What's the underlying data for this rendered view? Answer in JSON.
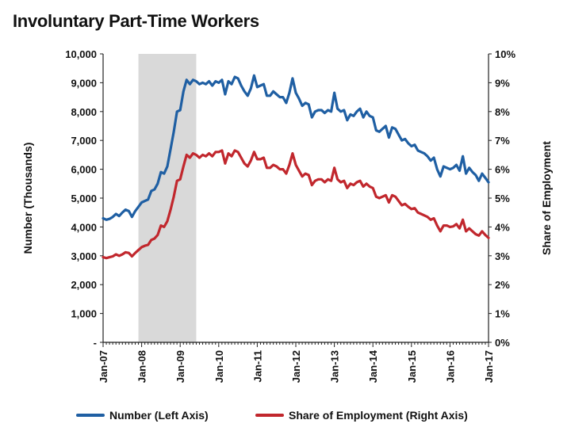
{
  "title": "Involuntary Part-Time Workers",
  "chart_data": {
    "type": "line",
    "title": "Involuntary Part-Time Workers",
    "xlabel": "",
    "ylabel_left": "Number (Thousands)",
    "ylabel_right": "Share of Employment",
    "ylim_left": [
      0,
      10000
    ],
    "ylim_right": [
      0,
      10
    ],
    "x_start": "Jan-07",
    "x_end": "Apr-17",
    "x_tick_labels": [
      "Jan-07",
      "Jan-08",
      "Jan-09",
      "Jan-10",
      "Jan-11",
      "Jan-12",
      "Jan-13",
      "Jan-14",
      "Jan-15",
      "Jan-16",
      "Jan-17"
    ],
    "y_tick_labels_left": [
      "-",
      "1,000",
      "2,000",
      "3,000",
      "4,000",
      "5,000",
      "6,000",
      "7,000",
      "8,000",
      "9,000",
      "10,000"
    ],
    "y_tick_labels_right": [
      "0%",
      "1%",
      "2%",
      "3%",
      "4%",
      "5%",
      "6%",
      "7%",
      "8%",
      "9%",
      "10%"
    ],
    "shaded_region": {
      "from": "Dec-07",
      "to": "Jun-09",
      "color": "#d9d9d9"
    },
    "legend_position": "bottom",
    "series": [
      {
        "name": "Number (Left Axis)",
        "axis": "left",
        "color": "#1f5fa3",
        "values": [
          4300,
          4250,
          4280,
          4350,
          4450,
          4380,
          4500,
          4600,
          4550,
          4350,
          4550,
          4700,
          4850,
          4900,
          4950,
          5250,
          5300,
          5500,
          5900,
          5850,
          6100,
          6700,
          7300,
          8000,
          8050,
          8700,
          9100,
          8950,
          9100,
          9050,
          8950,
          9000,
          8950,
          9050,
          8900,
          9050,
          9000,
          9100,
          8600,
          9050,
          8950,
          9200,
          9150,
          8900,
          8700,
          8550,
          8800,
          9250,
          8850,
          8900,
          8950,
          8550,
          8550,
          8700,
          8600,
          8500,
          8500,
          8300,
          8650,
          9150,
          8650,
          8450,
          8200,
          8300,
          8250,
          7800,
          8000,
          8050,
          8050,
          7950,
          8050,
          8000,
          8650,
          8100,
          8000,
          8050,
          7700,
          7900,
          7850,
          8000,
          8100,
          7800,
          8000,
          7850,
          7800,
          7350,
          7300,
          7400,
          7500,
          7100,
          7450,
          7400,
          7200,
          7000,
          7050,
          6900,
          6800,
          6850,
          6650,
          6600,
          6550,
          6450,
          6300,
          6400,
          6000,
          5750,
          6100,
          6050,
          6000,
          6050,
          6150,
          5950,
          6450,
          5850,
          6050,
          5900,
          5800,
          5600,
          5850,
          5700,
          5550
        ]
      },
      {
        "name": "Share of Employment (Right Axis)",
        "axis": "right",
        "color": "#c1272d",
        "values": [
          2.95,
          2.92,
          2.95,
          2.98,
          3.05,
          3.0,
          3.05,
          3.12,
          3.1,
          2.98,
          3.1,
          3.2,
          3.3,
          3.35,
          3.38,
          3.55,
          3.6,
          3.72,
          4.05,
          4.0,
          4.2,
          4.6,
          5.05,
          5.6,
          5.65,
          6.1,
          6.5,
          6.4,
          6.55,
          6.5,
          6.4,
          6.5,
          6.45,
          6.55,
          6.45,
          6.6,
          6.6,
          6.65,
          6.2,
          6.55,
          6.45,
          6.65,
          6.6,
          6.4,
          6.2,
          6.1,
          6.3,
          6.6,
          6.35,
          6.35,
          6.4,
          6.05,
          6.05,
          6.15,
          6.1,
          6.0,
          6.0,
          5.85,
          6.15,
          6.55,
          6.15,
          5.95,
          5.75,
          5.85,
          5.8,
          5.45,
          5.6,
          5.65,
          5.65,
          5.55,
          5.65,
          5.6,
          6.05,
          5.65,
          5.55,
          5.6,
          5.35,
          5.5,
          5.45,
          5.55,
          5.6,
          5.4,
          5.5,
          5.4,
          5.35,
          5.05,
          5.0,
          5.05,
          5.1,
          4.85,
          5.1,
          5.05,
          4.9,
          4.75,
          4.8,
          4.7,
          4.62,
          4.65,
          4.5,
          4.45,
          4.4,
          4.35,
          4.25,
          4.3,
          4.05,
          3.85,
          4.05,
          4.05,
          4.0,
          4.02,
          4.1,
          3.95,
          4.25,
          3.85,
          3.95,
          3.85,
          3.75,
          3.7,
          3.85,
          3.72,
          3.62
        ]
      }
    ]
  }
}
